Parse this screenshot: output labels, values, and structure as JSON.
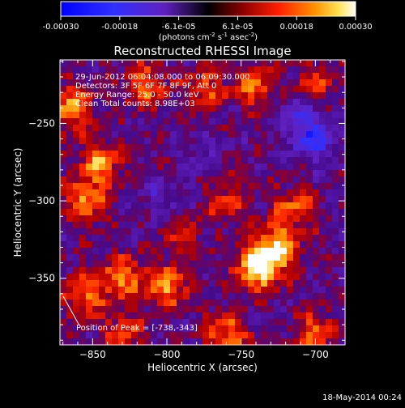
{
  "colorbar": {
    "ticks": [
      "-0.00030",
      "-0.00018",
      "-6.1e-05",
      "6.1e-05",
      "0.00018",
      "0.00030"
    ],
    "unit_main": "(photons cm",
    "unit_sup1": "-2",
    "unit_mid": " s",
    "unit_sup2": "-1",
    "unit_mid2": " asec",
    "unit_sup3": "-2",
    "unit_end": ")"
  },
  "chart_data": {
    "type": "heatmap",
    "title": "Reconstructed RHESSI Image",
    "xlabel": "Heliocentric X (arcsec)",
    "ylabel": "Heliocentric Y (arcsec)",
    "x_range": [
      -872,
      -680
    ],
    "y_range": [
      -393,
      -209
    ],
    "x_ticks": [
      -850,
      -800,
      -750,
      -700
    ],
    "y_ticks": [
      -250,
      -300,
      -350
    ],
    "x_tick_labels": [
      "−850",
      "−800",
      "−750",
      "−700"
    ],
    "y_tick_labels": [
      "−250",
      "−300",
      "−350"
    ],
    "color_range": [
      -0.0003,
      0.0003
    ],
    "grid": false,
    "annotations": [
      "29-Jun-2012 06:04:08.000 to 06:09:30.000",
      "Detectors: 3F 5F 6F 7F 8F 9F, Att 0",
      "Energy Range: 25.0 - 50.0 keV",
      "Clean    Total counts: 8.98E+03"
    ],
    "peak_label": "Position of Peak = [-738,-343]",
    "peak": [
      -738,
      -343
    ],
    "hot_spots": [
      {
        "x": -865,
        "y": -240,
        "level": 0.7
      },
      {
        "x": -855,
        "y": -300,
        "level": 0.65
      },
      {
        "x": -845,
        "y": -275,
        "level": 0.6
      },
      {
        "x": -815,
        "y": -225,
        "level": 0.55
      },
      {
        "x": -775,
        "y": -230,
        "level": 0.5
      },
      {
        "x": -740,
        "y": -225,
        "level": 0.55
      },
      {
        "x": -700,
        "y": -225,
        "level": 0.45
      },
      {
        "x": -738,
        "y": -343,
        "level": 1.0
      },
      {
        "x": -725,
        "y": -330,
        "level": 0.75
      },
      {
        "x": -800,
        "y": -355,
        "level": 0.7
      },
      {
        "x": -830,
        "y": -350,
        "level": 0.6
      },
      {
        "x": -855,
        "y": -360,
        "level": 0.55
      },
      {
        "x": -760,
        "y": -385,
        "level": 0.6
      },
      {
        "x": -700,
        "y": -385,
        "level": 0.5
      },
      {
        "x": -715,
        "y": -305,
        "level": 0.5
      },
      {
        "x": -760,
        "y": -300,
        "level": 0.4
      },
      {
        "x": -790,
        "y": -320,
        "level": 0.35
      },
      {
        "x": -830,
        "y": -385,
        "level": 0.45
      }
    ],
    "cold_spots": [
      {
        "x": -700,
        "y": -262,
        "level": -0.55
      },
      {
        "x": -710,
        "y": -245,
        "level": -0.4
      },
      {
        "x": -800,
        "y": -300,
        "level": -0.25
      },
      {
        "x": -780,
        "y": -270,
        "level": -0.2
      }
    ]
  },
  "footer": {
    "date": "18-May-2014 00:24"
  }
}
